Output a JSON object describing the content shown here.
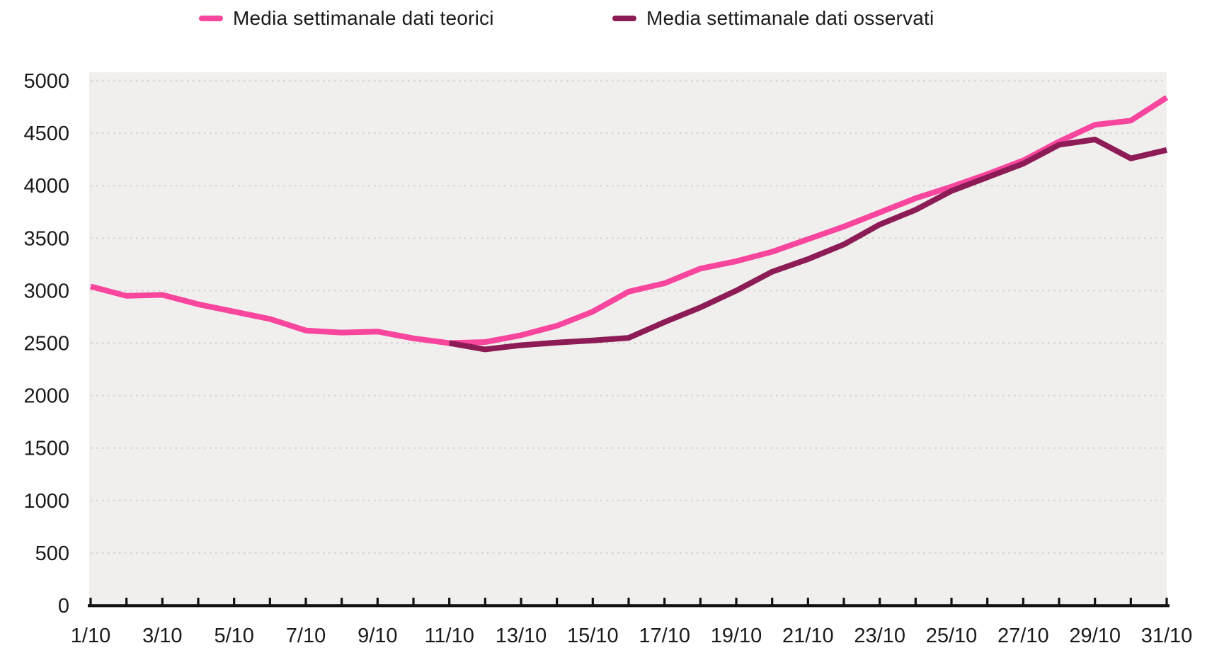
{
  "legend": {
    "items": [
      {
        "label": "Media settimanale dati teorici",
        "color": "#F8459E"
      },
      {
        "label": "Media settimanale dati osservati",
        "color": "#8D1C56"
      }
    ]
  },
  "chart_data": {
    "type": "line",
    "title": "",
    "xlabel": "",
    "ylabel": "",
    "x_unit": "day (October)",
    "ylim": [
      0,
      5000
    ],
    "ytick_step": 500,
    "y_tick_labels": [
      "0",
      "500",
      "1000",
      "1500",
      "2000",
      "2500",
      "3000",
      "3500",
      "4000",
      "4500",
      "5000"
    ],
    "x_tick_labels": [
      "1/10",
      "3/10",
      "5/10",
      "7/10",
      "9/10",
      "11/10",
      "13/10",
      "15/10",
      "17/10",
      "19/10",
      "21/10",
      "23/10",
      "25/10",
      "27/10",
      "29/10",
      "31/10"
    ],
    "x_days_labeled": [
      1,
      3,
      5,
      7,
      9,
      11,
      13,
      15,
      17,
      19,
      21,
      23,
      25,
      27,
      29,
      31
    ],
    "grid": "horizontal-dotted",
    "legend_position": "top",
    "plot_background": "#f0efed",
    "gridline_color": "#d8d6d3",
    "axis_color": "#111111",
    "label_color": "#1a1a1a",
    "series": [
      {
        "name": "Media settimanale dati teorici",
        "color": "#F8459E",
        "start_day": 1,
        "values": [
          3040,
          2950,
          2960,
          2870,
          2800,
          2730,
          2620,
          2600,
          2610,
          2545,
          2500,
          2510,
          2575,
          2665,
          2800,
          2990,
          3070,
          3210,
          3280,
          3370,
          3490,
          3610,
          3745,
          3880,
          3990,
          4110,
          4240,
          4420,
          4580,
          4620,
          4840
        ]
      },
      {
        "name": "Media settimanale dati osservati",
        "color": "#8D1C56",
        "start_day": 11,
        "values": [
          2500,
          2440,
          2480,
          2505,
          2525,
          2550,
          2700,
          2840,
          3000,
          3180,
          3300,
          3440,
          3630,
          3770,
          3950,
          4080,
          4210,
          4390,
          4440,
          4260,
          4340
        ]
      }
    ]
  }
}
